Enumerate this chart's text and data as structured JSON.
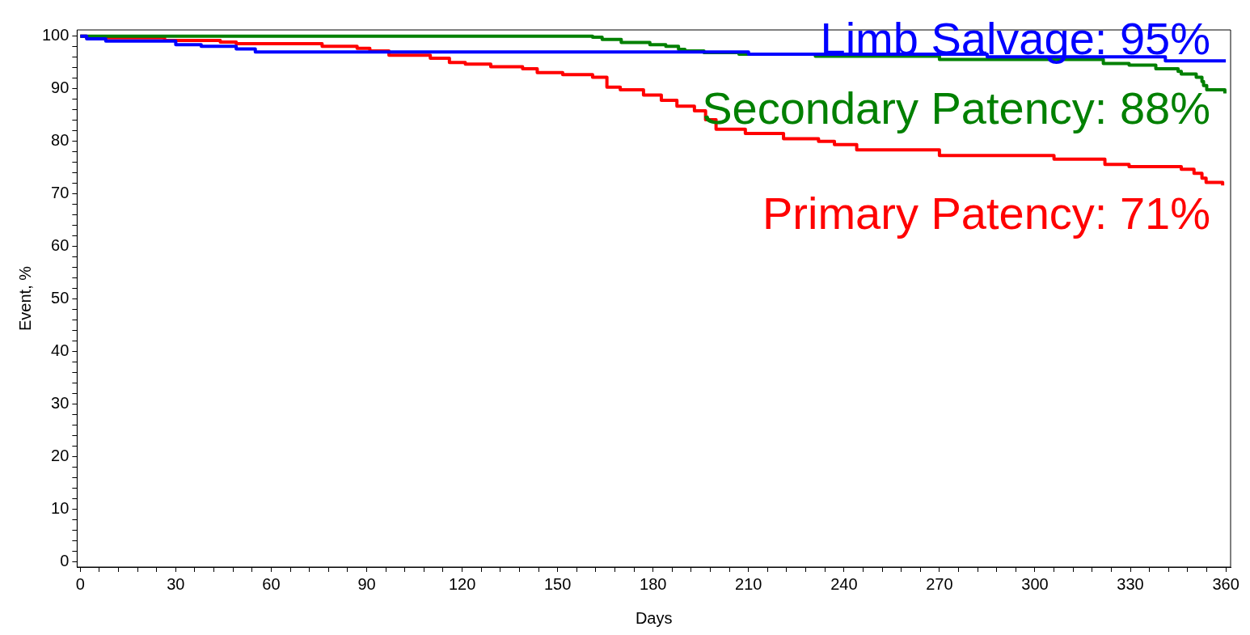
{
  "chart_data": {
    "type": "step",
    "xlabel": "Days",
    "ylabel": "Event, %",
    "xlim": [
      -1,
      361.5
    ],
    "ylim": [
      -1,
      101.2
    ],
    "xticks": [
      0,
      {
        "value": 6,
        "label": null
      },
      {
        "value": 12,
        "label": null
      },
      {
        "value": 18,
        "label": null
      },
      {
        "value": 24,
        "label": null
      },
      30,
      {
        "value": 36,
        "label": null
      },
      {
        "value": 42,
        "label": null
      },
      {
        "value": 48,
        "label": null
      },
      {
        "value": 54,
        "label": null
      },
      60,
      {
        "value": 66,
        "label": null
      },
      {
        "value": 72,
        "label": null
      },
      {
        "value": 78,
        "label": null
      },
      {
        "value": 84,
        "label": null
      },
      90,
      {
        "value": 96,
        "label": null
      },
      {
        "value": 102,
        "label": null
      },
      {
        "value": 108,
        "label": null
      },
      {
        "value": 114,
        "label": null
      },
      120,
      {
        "value": 126,
        "label": null
      },
      {
        "value": 132,
        "label": null
      },
      {
        "value": 138,
        "label": null
      },
      {
        "value": 144,
        "label": null
      },
      150,
      {
        "value": 156,
        "label": null
      },
      {
        "value": 162,
        "label": null
      },
      {
        "value": 168,
        "label": null
      },
      {
        "value": 174,
        "label": null
      },
      180,
      {
        "value": 186,
        "label": null
      },
      {
        "value": 192,
        "label": null
      },
      {
        "value": 198,
        "label": null
      },
      {
        "value": 204,
        "label": null
      },
      210,
      {
        "value": 216,
        "label": null
      },
      {
        "value": 222,
        "label": null
      },
      {
        "value": 228,
        "label": null
      },
      {
        "value": 234,
        "label": null
      },
      240,
      {
        "value": 246,
        "label": null
      },
      {
        "value": 252,
        "label": null
      },
      {
        "value": 258,
        "label": null
      },
      {
        "value": 264,
        "label": null
      },
      270,
      {
        "value": 276,
        "label": null
      },
      {
        "value": 282,
        "label": null
      },
      {
        "value": 288,
        "label": null
      },
      {
        "value": 294,
        "label": null
      },
      300,
      {
        "value": 306,
        "label": null
      },
      {
        "value": 312,
        "label": null
      },
      {
        "value": 318,
        "label": null
      },
      {
        "value": 324,
        "label": null
      },
      330,
      {
        "value": 336,
        "label": null
      },
      {
        "value": 342,
        "label": null
      },
      {
        "value": 348,
        "label": null
      },
      {
        "value": 354,
        "label": null
      },
      360
    ],
    "yticks": [
      0,
      {
        "value": 2,
        "label": null
      },
      {
        "value": 4,
        "label": null
      },
      {
        "value": 6,
        "label": null
      },
      {
        "value": 8,
        "label": null
      },
      10,
      {
        "value": 12,
        "label": null
      },
      {
        "value": 14,
        "label": null
      },
      {
        "value": 16,
        "label": null
      },
      {
        "value": 18,
        "label": null
      },
      20,
      {
        "value": 22,
        "label": null
      },
      {
        "value": 24,
        "label": null
      },
      {
        "value": 26,
        "label": null
      },
      {
        "value": 28,
        "label": null
      },
      30,
      {
        "value": 32,
        "label": null
      },
      {
        "value": 34,
        "label": null
      },
      {
        "value": 36,
        "label": null
      },
      {
        "value": 38,
        "label": null
      },
      40,
      {
        "value": 42,
        "label": null
      },
      {
        "value": 44,
        "label": null
      },
      {
        "value": 46,
        "label": null
      },
      {
        "value": 48,
        "label": null
      },
      50,
      {
        "value": 52,
        "label": null
      },
      {
        "value": 54,
        "label": null
      },
      {
        "value": 56,
        "label": null
      },
      {
        "value": 58,
        "label": null
      },
      60,
      {
        "value": 62,
        "label": null
      },
      {
        "value": 64,
        "label": null
      },
      {
        "value": 66,
        "label": null
      },
      {
        "value": 68,
        "label": null
      },
      70,
      {
        "value": 72,
        "label": null
      },
      {
        "value": 74,
        "label": null
      },
      {
        "value": 76,
        "label": null
      },
      {
        "value": 78,
        "label": null
      },
      80,
      {
        "value": 82,
        "label": null
      },
      {
        "value": 84,
        "label": null
      },
      {
        "value": 86,
        "label": null
      },
      {
        "value": 88,
        "label": null
      },
      90,
      {
        "value": 92,
        "label": null
      },
      {
        "value": 94,
        "label": null
      },
      {
        "value": 96,
        "label": null
      },
      {
        "value": 98,
        "label": null
      },
      100
    ],
    "grid": false,
    "marker": "none",
    "line_style": "solid",
    "series": [
      {
        "name": "Limb Salvage: 95%",
        "color": "#0000ff",
        "x": [
          0,
          2,
          8,
          30,
          38,
          49,
          55,
          210,
          285,
          341,
          360
        ],
        "values": [
          100,
          99.5,
          99.1,
          98.4,
          98.1,
          97.6,
          97.0,
          96.6,
          96.1,
          95.3,
          95.3
        ]
      },
      {
        "name": "Secondary Patency: 88%",
        "color": "#008000",
        "x": [
          0,
          161,
          164,
          170,
          179,
          184,
          188,
          190,
          196,
          207,
          231,
          270,
          321.5,
          329.6,
          338,
          345,
          346,
          350.7,
          352.5,
          353,
          354,
          359.7
        ],
        "values": [
          100,
          99.8,
          99.4,
          98.8,
          98.4,
          98.1,
          97.5,
          97.2,
          96.9,
          96.6,
          96.2,
          95.6,
          94.8,
          94.5,
          93.8,
          93.3,
          92.8,
          92.2,
          91.4,
          90.6,
          89.8,
          89.1
        ]
      },
      {
        "name": "Primary Patency: 71%",
        "color": "#ff0000",
        "x": [
          0,
          2,
          26.5,
          44,
          49,
          76,
          87,
          91,
          97,
          110,
          116,
          121,
          129,
          139,
          143.6,
          151.6,
          161,
          165.5,
          169.7,
          177,
          182.6,
          187.5,
          193,
          196.5,
          199.8,
          209,
          221,
          232,
          237,
          244,
          270,
          306,
          322,
          329.6,
          346,
          350,
          352.5,
          353.8,
          359
        ],
        "values": [
          100,
          99.7,
          99.2,
          98.9,
          98.6,
          98.1,
          97.7,
          97.2,
          96.4,
          95.8,
          95.0,
          94.7,
          94.2,
          93.8,
          93.1,
          92.7,
          92.2,
          90.3,
          89.8,
          88.8,
          87.8,
          86.7,
          85.8,
          84.1,
          82.3,
          81.5,
          80.5,
          80.0,
          79.4,
          78.4,
          77.3,
          76.6,
          75.6,
          75.2,
          74.7,
          73.9,
          73.0,
          72.2,
          71.6
        ]
      }
    ]
  }
}
